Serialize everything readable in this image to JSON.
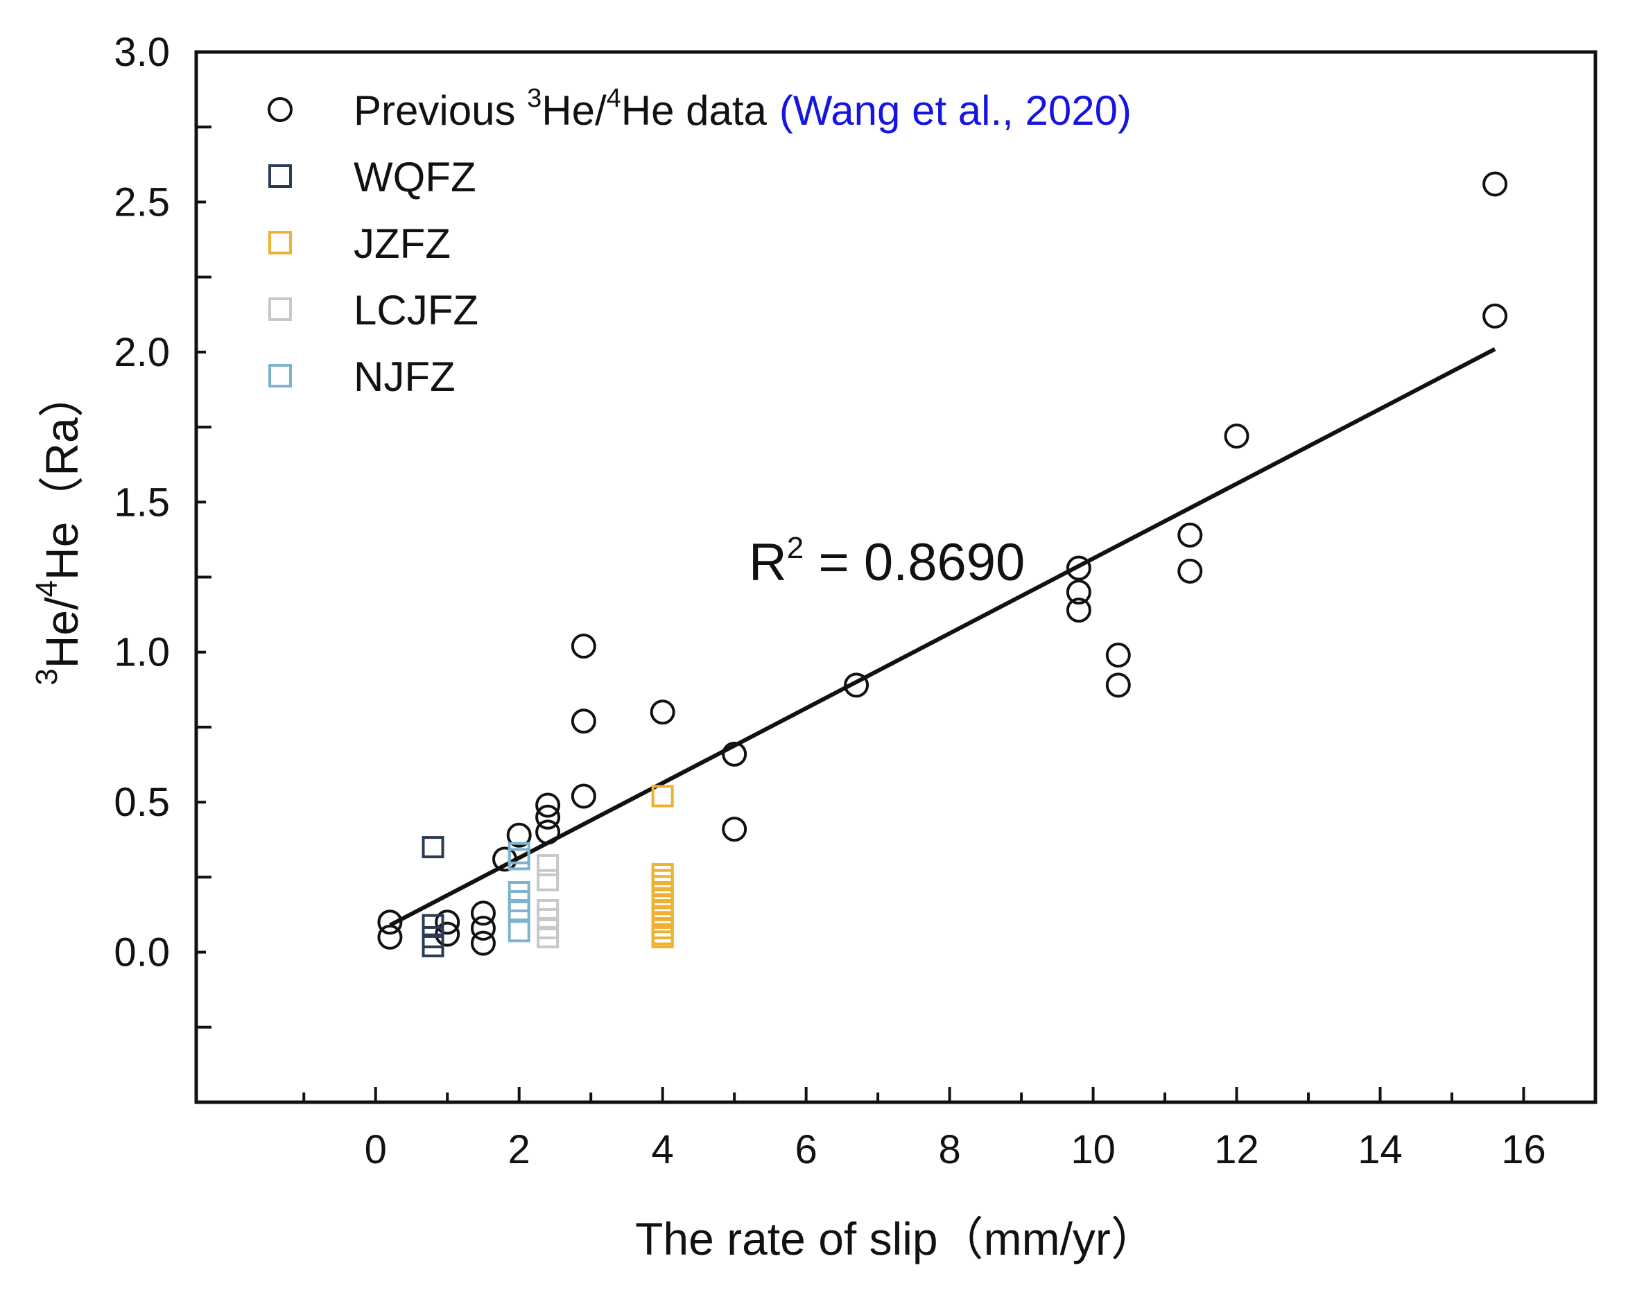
{
  "chart_data": {
    "type": "scatter",
    "title": "",
    "xlabel": "The rate of slip（mm/yr）",
    "ylabel": {
      "prefix_sup": "3",
      "a": "He/",
      "b_sup": "4",
      "c": "He（Ra）"
    },
    "xlim": [
      -2.5,
      17.0
    ],
    "ylim": [
      -0.5,
      3.0
    ],
    "xticks": [
      "0",
      "2",
      "4",
      "6",
      "8",
      "10",
      "12",
      "14",
      "16"
    ],
    "xtick_values": [
      0,
      2,
      4,
      6,
      8,
      10,
      12,
      14,
      16
    ],
    "yticks": [
      "0.0",
      "0.5",
      "1.0",
      "1.5",
      "2.0",
      "2.5",
      "3.0"
    ],
    "ytick_values": [
      0.0,
      0.5,
      1.0,
      1.5,
      2.0,
      2.5,
      3.0
    ],
    "legend_position": "top-left",
    "legend": [
      {
        "key": "previous",
        "parts": [
          "Previous ",
          "3",
          "He/",
          "4",
          "He data"
        ],
        "citation": "(Wang et al., 2020)",
        "marker": "circle",
        "color": "#111111"
      },
      {
        "key": "wqfz",
        "label": "WQFZ",
        "marker": "square",
        "color": "#2b3b55"
      },
      {
        "key": "jzfz",
        "label": "JZFZ",
        "marker": "square",
        "color": "#f0b030"
      },
      {
        "key": "lcjfz",
        "label": "LCJFZ",
        "marker": "square",
        "color": "#c8c8c8"
      },
      {
        "key": "njfz",
        "label": "NJFZ",
        "marker": "square",
        "color": "#7fb2cc"
      }
    ],
    "citation_color": "#1515e0",
    "series": [
      {
        "name": "previous",
        "points": [
          [
            0.2,
            0.1
          ],
          [
            0.2,
            0.05
          ],
          [
            1.0,
            0.1
          ],
          [
            1.0,
            0.06
          ],
          [
            1.5,
            0.13
          ],
          [
            1.5,
            0.08
          ],
          [
            1.5,
            0.03
          ],
          [
            1.8,
            0.31
          ],
          [
            2.0,
            0.39
          ],
          [
            2.4,
            0.49
          ],
          [
            2.4,
            0.45
          ],
          [
            2.4,
            0.4
          ],
          [
            2.9,
            1.02
          ],
          [
            2.9,
            0.77
          ],
          [
            2.9,
            0.52
          ],
          [
            4.0,
            0.8
          ],
          [
            5.0,
            0.66
          ],
          [
            5.0,
            0.41
          ],
          [
            6.7,
            0.89
          ],
          [
            9.8,
            1.28
          ],
          [
            9.8,
            1.2
          ],
          [
            9.8,
            1.14
          ],
          [
            10.35,
            0.99
          ],
          [
            10.35,
            0.89
          ],
          [
            11.35,
            1.39
          ],
          [
            11.35,
            1.27
          ],
          [
            12.0,
            1.72
          ],
          [
            15.6,
            2.56
          ],
          [
            15.6,
            2.12
          ]
        ]
      },
      {
        "name": "wqfz",
        "points": [
          [
            0.8,
            0.35
          ],
          [
            0.8,
            0.09
          ],
          [
            0.8,
            0.05
          ],
          [
            0.8,
            0.02
          ]
        ]
      },
      {
        "name": "jzfz",
        "points": [
          [
            4.0,
            0.52
          ],
          [
            4.0,
            0.26
          ],
          [
            4.0,
            0.24
          ],
          [
            4.0,
            0.22
          ],
          [
            4.0,
            0.2
          ],
          [
            4.0,
            0.18
          ],
          [
            4.0,
            0.16
          ],
          [
            4.0,
            0.14
          ],
          [
            4.0,
            0.12
          ],
          [
            4.0,
            0.1
          ],
          [
            4.0,
            0.08
          ],
          [
            4.0,
            0.06
          ],
          [
            4.0,
            0.05
          ]
        ]
      },
      {
        "name": "lcjfz",
        "points": [
          [
            2.4,
            0.29
          ],
          [
            2.4,
            0.24
          ],
          [
            2.4,
            0.14
          ],
          [
            2.4,
            0.11
          ],
          [
            2.4,
            0.08
          ],
          [
            2.4,
            0.05
          ]
        ]
      },
      {
        "name": "njfz",
        "points": [
          [
            2.0,
            0.33
          ],
          [
            2.0,
            0.31
          ],
          [
            2.0,
            0.2
          ],
          [
            2.0,
            0.17
          ],
          [
            2.0,
            0.14
          ],
          [
            2.0,
            0.07
          ]
        ]
      }
    ],
    "fit_line": {
      "x": [
        0.2,
        15.6
      ],
      "y": [
        0.09,
        2.01
      ]
    },
    "annotation": {
      "base": "R",
      "sup": "2",
      "rest": " = 0.8690",
      "x": 5.2,
      "y": 1.24
    }
  }
}
